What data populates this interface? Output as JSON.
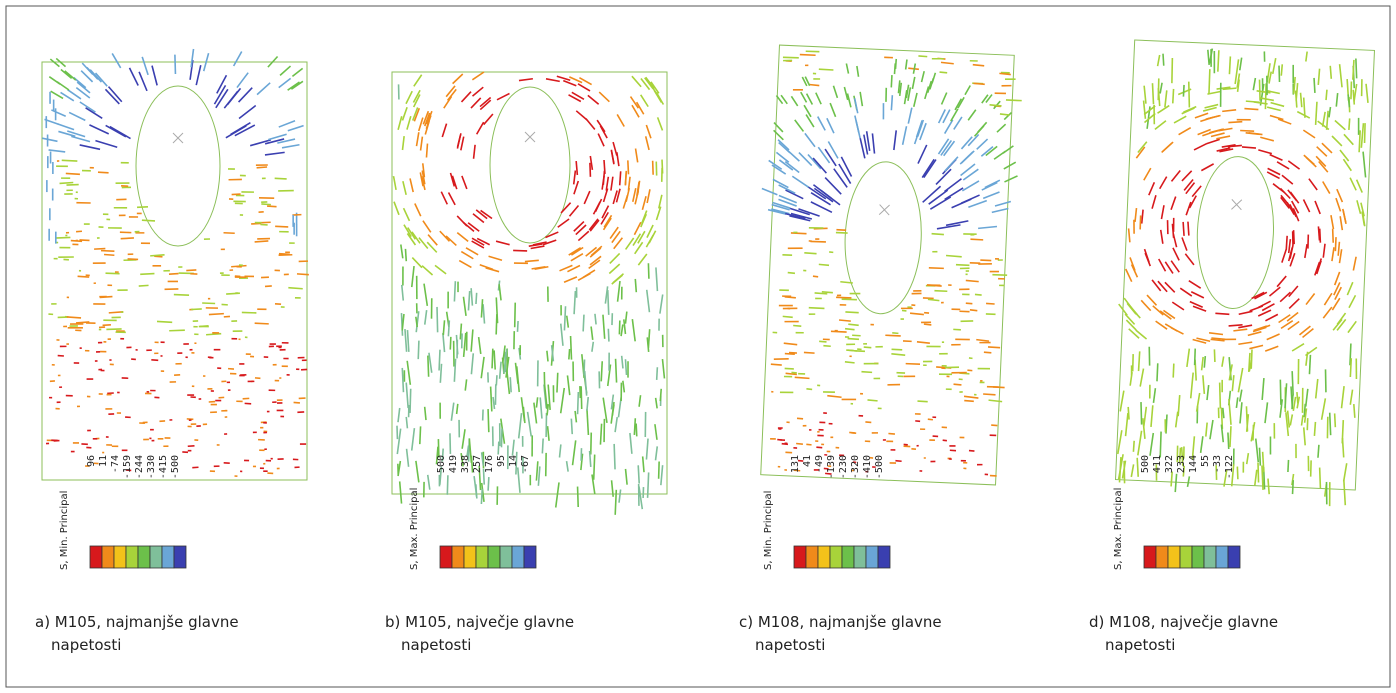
{
  "panels": [
    {
      "legend_title": "S, Min. Principal",
      "legend_values": [
        96,
        11,
        -74,
        -159,
        -244,
        -330,
        -415,
        -500
      ],
      "caption": [
        "a) M105, najmanjše glavne",
        "napetosti"
      ]
    },
    {
      "legend_title": "S, Max. Principal",
      "legend_values": [
        500,
        419,
        338,
        257,
        176,
        95,
        14,
        -67
      ],
      "caption": [
        "b) M105, največje glavne",
        "napetosti"
      ]
    },
    {
      "legend_title": "S, Min. Principal",
      "legend_values": [
        131,
        41,
        -49,
        -139,
        -230,
        -320,
        -410,
        -500
      ],
      "caption": [
        "c) M108, najmanjše glavne",
        "napetosti"
      ]
    },
    {
      "legend_title": "S, Max. Principal",
      "legend_values": [
        500,
        411,
        322,
        233,
        144,
        55,
        -33,
        -122
      ],
      "caption": [
        "d) M108, največje glavne",
        "napetosti"
      ]
    }
  ]
}
